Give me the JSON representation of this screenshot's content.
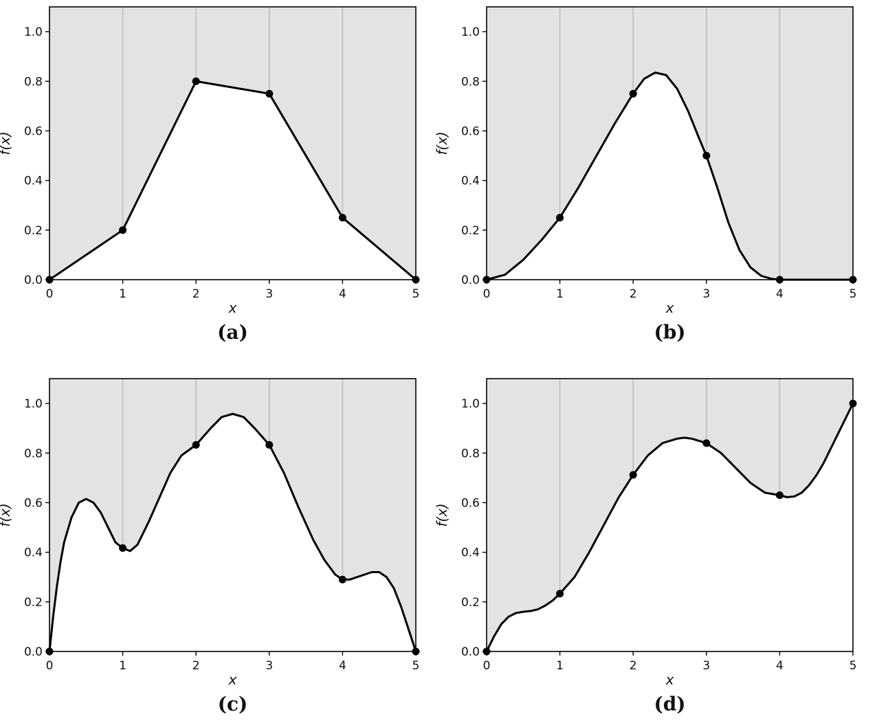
{
  "colors": {
    "shade": "#e3e3e3",
    "line": "#000000",
    "grid": "#bdbdbd",
    "background": "#ffffff"
  },
  "chart_data": [
    {
      "type": "line",
      "panel_label": "(a)",
      "xlabel": "x",
      "ylabel": "f(x)",
      "xlim": [
        0,
        5
      ],
      "ylim": [
        0,
        1.1
      ],
      "xticks": [
        "0",
        "1",
        "2",
        "3",
        "4",
        "5"
      ],
      "yticks": [
        "0.0",
        "0.2",
        "0.4",
        "0.6",
        "0.8",
        "1.0"
      ],
      "grid": "vertical",
      "shaded_region": "above curve",
      "points": {
        "x": [
          0,
          1,
          2,
          3,
          4,
          5
        ],
        "y": [
          0.0,
          0.2,
          0.8,
          0.75,
          0.25,
          0.0
        ]
      },
      "curve": {
        "x": [
          0,
          1,
          2,
          3,
          4,
          5
        ],
        "y": [
          0.0,
          0.2,
          0.8,
          0.75,
          0.25,
          0.0
        ]
      }
    },
    {
      "type": "line",
      "panel_label": "(b)",
      "xlabel": "x",
      "ylabel": "f(x)",
      "xlim": [
        0,
        5
      ],
      "ylim": [
        0,
        1.1
      ],
      "xticks": [
        "0",
        "1",
        "2",
        "3",
        "4",
        "5"
      ],
      "yticks": [
        "0.0",
        "0.2",
        "0.4",
        "0.6",
        "0.8",
        "1.0"
      ],
      "grid": "vertical",
      "shaded_region": "above curve",
      "points": {
        "x": [
          0,
          1,
          2,
          3,
          4,
          5
        ],
        "y": [
          0.0,
          0.25,
          0.75,
          0.5,
          0.0,
          0.0
        ]
      },
      "curve": {
        "x": [
          0,
          0.25,
          0.5,
          0.75,
          1,
          1.25,
          1.5,
          1.75,
          2,
          2.15,
          2.3,
          2.45,
          2.6,
          2.75,
          2.9,
          3,
          3.15,
          3.3,
          3.45,
          3.6,
          3.75,
          3.9,
          4,
          4.5,
          5
        ],
        "y": [
          0.0,
          0.02,
          0.08,
          0.16,
          0.25,
          0.37,
          0.5,
          0.63,
          0.75,
          0.81,
          0.835,
          0.825,
          0.77,
          0.68,
          0.57,
          0.5,
          0.37,
          0.23,
          0.12,
          0.05,
          0.015,
          0.003,
          0.0,
          0.0,
          0.0
        ]
      }
    },
    {
      "type": "line",
      "panel_label": "(c)",
      "xlabel": "x",
      "ylabel": "f(x)",
      "xlim": [
        0,
        5
      ],
      "ylim": [
        0,
        1.1
      ],
      "xticks": [
        "0",
        "1",
        "2",
        "3",
        "4",
        "5"
      ],
      "yticks": [
        "0.0",
        "0.2",
        "0.4",
        "0.6",
        "0.8",
        "1.0"
      ],
      "grid": "vertical",
      "shaded_region": "above curve",
      "points": {
        "x": [
          0,
          1,
          2,
          3,
          4,
          5
        ],
        "y": [
          0.0,
          0.417,
          0.833,
          0.833,
          0.29,
          0.0
        ]
      },
      "curve": {
        "x": [
          0,
          0.05,
          0.1,
          0.15,
          0.2,
          0.3,
          0.4,
          0.5,
          0.6,
          0.7,
          0.8,
          0.9,
          1,
          1.1,
          1.2,
          1.35,
          1.5,
          1.65,
          1.8,
          2,
          2.2,
          2.35,
          2.5,
          2.65,
          2.8,
          3,
          3.2,
          3.4,
          3.6,
          3.75,
          3.9,
          4,
          4.1,
          4.2,
          4.3,
          4.4,
          4.5,
          4.6,
          4.7,
          4.8,
          4.9,
          5
        ],
        "y": [
          0.0,
          0.14,
          0.26,
          0.36,
          0.44,
          0.54,
          0.6,
          0.615,
          0.6,
          0.56,
          0.5,
          0.44,
          0.417,
          0.405,
          0.43,
          0.52,
          0.62,
          0.72,
          0.79,
          0.833,
          0.9,
          0.945,
          0.958,
          0.945,
          0.9,
          0.833,
          0.72,
          0.58,
          0.45,
          0.37,
          0.31,
          0.29,
          0.29,
          0.3,
          0.31,
          0.32,
          0.32,
          0.3,
          0.255,
          0.18,
          0.09,
          0.0
        ]
      }
    },
    {
      "type": "line",
      "panel_label": "(d)",
      "xlabel": "x",
      "ylabel": "f(x)",
      "xlim": [
        0,
        5
      ],
      "ylim": [
        0,
        1.1
      ],
      "xticks": [
        "0",
        "1",
        "2",
        "3",
        "4",
        "5"
      ],
      "yticks": [
        "0.0",
        "0.2",
        "0.4",
        "0.6",
        "0.8",
        "1.0"
      ],
      "grid": "vertical",
      "shaded_region": "above curve",
      "points": {
        "x": [
          0,
          1,
          2,
          3,
          4,
          5
        ],
        "y": [
          0.0,
          0.233,
          0.712,
          0.84,
          0.63,
          1.0
        ]
      },
      "curve": {
        "x": [
          0,
          0.1,
          0.2,
          0.3,
          0.4,
          0.5,
          0.6,
          0.7,
          0.8,
          0.9,
          1,
          1.2,
          1.4,
          1.6,
          1.8,
          2,
          2.2,
          2.4,
          2.6,
          2.7,
          2.8,
          3,
          3.2,
          3.4,
          3.6,
          3.8,
          4,
          4.1,
          4.2,
          4.3,
          4.4,
          4.5,
          4.6,
          4.7,
          4.8,
          4.9,
          5
        ],
        "y": [
          0.0,
          0.06,
          0.11,
          0.14,
          0.155,
          0.16,
          0.163,
          0.17,
          0.185,
          0.205,
          0.233,
          0.3,
          0.4,
          0.51,
          0.62,
          0.712,
          0.79,
          0.84,
          0.858,
          0.862,
          0.858,
          0.84,
          0.8,
          0.74,
          0.68,
          0.64,
          0.63,
          0.622,
          0.625,
          0.64,
          0.67,
          0.71,
          0.76,
          0.82,
          0.88,
          0.94,
          1.0
        ]
      }
    }
  ]
}
